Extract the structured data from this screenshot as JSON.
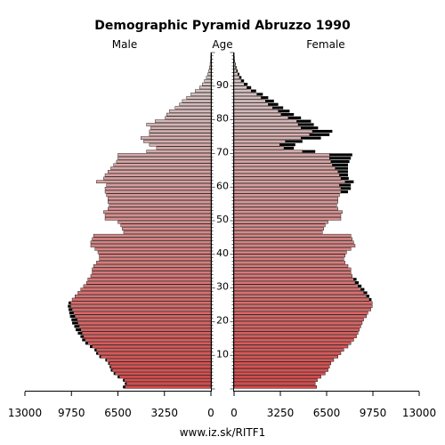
{
  "chart_data": {
    "type": "bar",
    "title": "Demographic Pyramid Abruzzo 1990",
    "left_label": "Male",
    "center_label": "Age",
    "right_label": "Female",
    "footer": "www.iz.sk/RITF1",
    "xlim": [
      0,
      13000
    ],
    "x_ticks_left": [
      "13000",
      "9750",
      "6500",
      "3250",
      "0"
    ],
    "x_ticks_right": [
      "0",
      "3250",
      "6500",
      "9750",
      "13000"
    ],
    "x_tick_values": [
      13000,
      9750,
      6500,
      3250,
      0
    ],
    "age_ticks": [
      "10",
      "20",
      "30",
      "40",
      "50",
      "60",
      "70",
      "80",
      "90"
    ],
    "age_tick_values": [
      10,
      20,
      30,
      40,
      50,
      60,
      70,
      80,
      90
    ],
    "ages": [
      0,
      1,
      2,
      3,
      4,
      5,
      6,
      7,
      8,
      9,
      10,
      11,
      12,
      13,
      14,
      15,
      16,
      17,
      18,
      19,
      20,
      21,
      22,
      23,
      24,
      25,
      26,
      27,
      28,
      29,
      30,
      31,
      32,
      33,
      34,
      35,
      36,
      37,
      38,
      39,
      40,
      41,
      42,
      43,
      44,
      45,
      46,
      47,
      48,
      49,
      50,
      51,
      52,
      53,
      54,
      55,
      56,
      57,
      58,
      59,
      60,
      61,
      62,
      63,
      64,
      65,
      66,
      67,
      68,
      69,
      70,
      71,
      72,
      73,
      74,
      75,
      76,
      77,
      78,
      79,
      80,
      81,
      82,
      83,
      84,
      85,
      86,
      87,
      88,
      89,
      90,
      91,
      92,
      93,
      94,
      95,
      96,
      97,
      98,
      99
    ],
    "series": [
      {
        "side": "male",
        "color": "#d94a4a",
        "values": [
          6000,
          5900,
          6050,
          6400,
          6700,
          6900,
          7000,
          7100,
          7300,
          7700,
          7900,
          8000,
          8300,
          8600,
          8800,
          8900,
          9000,
          9100,
          9200,
          9300,
          9350,
          9500,
          9600,
          9700,
          9800,
          9800,
          9700,
          9500,
          9300,
          9100,
          8900,
          8700,
          8600,
          8400,
          8300,
          8300,
          8200,
          8000,
          7800,
          7800,
          7900,
          8100,
          8400,
          8400,
          8300,
          8200,
          6100,
          6200,
          6300,
          6500,
          7400,
          7400,
          7500,
          7200,
          7100,
          7200,
          7200,
          7300,
          7400,
          7400,
          7300,
          8000,
          7500,
          7400,
          7200,
          7000,
          6800,
          6600,
          6500,
          6500,
          4500,
          3800,
          4300,
          4700,
          4900,
          4300,
          4300,
          4200,
          4500,
          3900,
          3200,
          3100,
          2900,
          2500,
          2200,
          2000,
          1700,
          1400,
          1100,
          800,
          600,
          450,
          320,
          220,
          150,
          100,
          60,
          35,
          20,
          10
        ],
        "excess": [
          150,
          120,
          100,
          120,
          100,
          100,
          80,
          80,
          80,
          100,
          120,
          140,
          160,
          180,
          200,
          220,
          300,
          350,
          350,
          400,
          400,
          350,
          300,
          250,
          200,
          150,
          0,
          0,
          0,
          0,
          0,
          0,
          0,
          0,
          0,
          0,
          0,
          0,
          0,
          0,
          0,
          0,
          0,
          0,
          0,
          0,
          0,
          0,
          0,
          0,
          0,
          0,
          0,
          0,
          0,
          0,
          0,
          0,
          0,
          0,
          0,
          0,
          0,
          0,
          0,
          0,
          0,
          0,
          0,
          0,
          0,
          0,
          0,
          0,
          0,
          0,
          0,
          0,
          0,
          0,
          0,
          0,
          0,
          0,
          0,
          0,
          0,
          0,
          0,
          0,
          0,
          0,
          0,
          0,
          0,
          0,
          0,
          0,
          0,
          0
        ]
      },
      {
        "side": "female",
        "color": "#d94a4a",
        "values": [
          5800,
          5700,
          5850,
          6100,
          6400,
          6600,
          6700,
          6800,
          7000,
          7300,
          7500,
          7700,
          8000,
          8200,
          8400,
          8600,
          8700,
          8800,
          8900,
          9000,
          9100,
          9300,
          9400,
          9600,
          9700,
          9700,
          9500,
          9300,
          9100,
          8900,
          8700,
          8500,
          8400,
          8300,
          8200,
          8200,
          8000,
          7800,
          7700,
          7800,
          7900,
          8200,
          8500,
          8400,
          8300,
          8200,
          6200,
          6300,
          6400,
          6600,
          7500,
          7500,
          7600,
          7300,
          7200,
          7300,
          7300,
          7400,
          7500,
          7500,
          7400,
          7800,
          7500,
          7400,
          7300,
          7100,
          6900,
          6800,
          6700,
          6700,
          4800,
          3500,
          3200,
          3600,
          4700,
          5300,
          5500,
          4700,
          4500,
          4400,
          3800,
          3300,
          3100,
          2700,
          2400,
          2200,
          1900,
          1600,
          1200,
          900,
          700,
          500,
          370,
          260,
          170,
          110,
          70,
          40,
          20,
          10
        ],
        "excess": [
          0,
          0,
          0,
          0,
          0,
          0,
          0,
          0,
          0,
          0,
          0,
          0,
          0,
          0,
          0,
          0,
          0,
          0,
          0,
          0,
          0,
          0,
          0,
          0,
          0,
          0,
          150,
          200,
          250,
          250,
          250,
          250,
          200,
          0,
          0,
          0,
          0,
          0,
          0,
          0,
          0,
          0,
          0,
          0,
          0,
          0,
          0,
          0,
          0,
          0,
          0,
          0,
          0,
          0,
          0,
          0,
          0,
          0,
          500,
          700,
          800,
          600,
          550,
          600,
          700,
          900,
          1100,
          1300,
          1500,
          1600,
          900,
          700,
          1100,
          1200,
          1400,
          1400,
          1400,
          1200,
          1100,
          1000,
          900,
          900,
          800,
          750,
          700,
          600,
          500,
          420,
          350,
          300,
          250,
          200,
          150,
          110,
          80,
          60,
          40,
          25,
          15,
          8
        ]
      }
    ]
  }
}
